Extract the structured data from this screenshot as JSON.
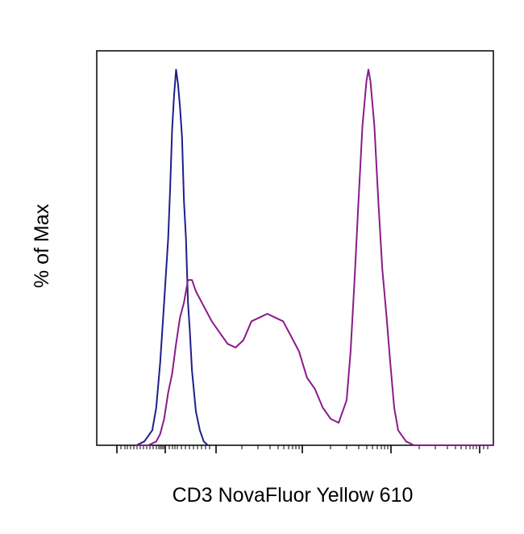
{
  "chart_data": {
    "type": "line",
    "title": "",
    "xlabel": "CD3 NovaFluor Yellow 610",
    "ylabel": "% of Max",
    "x_scale": "log (biexponential)",
    "xlim": [
      0,
      1
    ],
    "ylim": [
      0,
      1.05
    ],
    "grid": false,
    "legend": "none",
    "series": [
      {
        "color": "#1f1f8a",
        "x": [
          0.1,
          0.12,
          0.14,
          0.15,
          0.16,
          0.17,
          0.18,
          0.185,
          0.19,
          0.195,
          0.2,
          0.205,
          0.21,
          0.215,
          0.22,
          0.225,
          0.23,
          0.235,
          0.24,
          0.25,
          0.26,
          0.27,
          0.28
        ],
        "y": [
          0.0,
          0.01,
          0.04,
          0.1,
          0.22,
          0.38,
          0.55,
          0.68,
          0.84,
          0.93,
          1.0,
          0.96,
          0.9,
          0.82,
          0.65,
          0.55,
          0.38,
          0.3,
          0.2,
          0.09,
          0.04,
          0.01,
          0.0
        ]
      },
      {
        "color": "#8b1a8b",
        "x": [
          0.1,
          0.13,
          0.15,
          0.16,
          0.17,
          0.18,
          0.19,
          0.2,
          0.21,
          0.22,
          0.23,
          0.24,
          0.25,
          0.27,
          0.29,
          0.31,
          0.33,
          0.35,
          0.37,
          0.39,
          0.41,
          0.43,
          0.45,
          0.47,
          0.49,
          0.51,
          0.53,
          0.55,
          0.57,
          0.59,
          0.61,
          0.63,
          0.64,
          0.65,
          0.66,
          0.67,
          0.68,
          0.685,
          0.69,
          0.7,
          0.71,
          0.72,
          0.73,
          0.74,
          0.75,
          0.76,
          0.78,
          0.8,
          0.85,
          0.9,
          1.0
        ],
        "y": [
          0.0,
          0.0,
          0.01,
          0.03,
          0.07,
          0.14,
          0.19,
          0.27,
          0.34,
          0.38,
          0.44,
          0.44,
          0.41,
          0.37,
          0.33,
          0.3,
          0.27,
          0.26,
          0.28,
          0.33,
          0.34,
          0.35,
          0.34,
          0.33,
          0.29,
          0.25,
          0.18,
          0.15,
          0.1,
          0.07,
          0.06,
          0.12,
          0.25,
          0.44,
          0.65,
          0.85,
          0.97,
          1.0,
          0.97,
          0.85,
          0.65,
          0.47,
          0.35,
          0.22,
          0.1,
          0.04,
          0.01,
          0.0,
          0.0,
          0.0,
          0.0
        ]
      }
    ]
  }
}
